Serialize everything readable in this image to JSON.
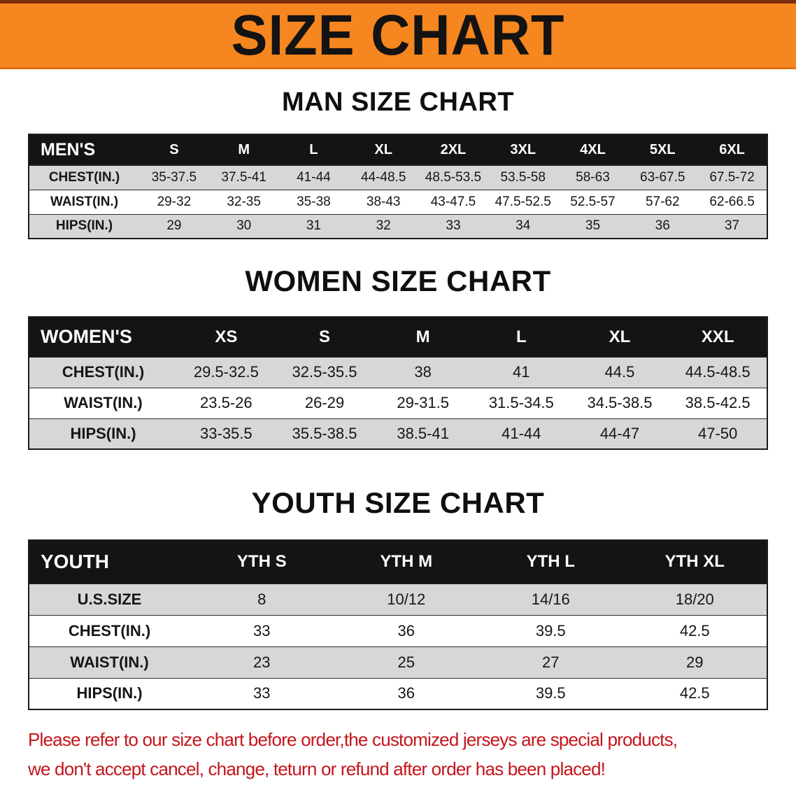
{
  "banner": {
    "title": "SIZE CHART"
  },
  "sections": [
    {
      "heading": "MAN SIZE CHART",
      "table": {
        "header": [
          "MEN'S",
          "S",
          "M",
          "L",
          "XL",
          "2XL",
          "3XL",
          "4XL",
          "5XL",
          "6XL"
        ],
        "rows": [
          [
            "CHEST(IN.)",
            "35-37.5",
            "37.5-41",
            "41-44",
            "44-48.5",
            "48.5-53.5",
            "53.5-58",
            "58-63",
            "63-67.5",
            "67.5-72"
          ],
          [
            "WAIST(IN.)",
            "29-32",
            "32-35",
            "35-38",
            "38-43",
            "43-47.5",
            "47.5-52.5",
            "52.5-57",
            "57-62",
            "62-66.5"
          ],
          [
            "HIPS(IN.)",
            "29",
            "30",
            "31",
            "32",
            "33",
            "34",
            "35",
            "36",
            "37"
          ]
        ]
      }
    },
    {
      "heading": "WOMEN SIZE CHART",
      "table": {
        "header": [
          "WOMEN'S",
          "XS",
          "S",
          "M",
          "L",
          "XL",
          "XXL"
        ],
        "rows": [
          [
            "CHEST(IN.)",
            "29.5-32.5",
            "32.5-35.5",
            "38",
            "41",
            "44.5",
            "44.5-48.5"
          ],
          [
            "WAIST(IN.)",
            "23.5-26",
            "26-29",
            "29-31.5",
            "31.5-34.5",
            "34.5-38.5",
            "38.5-42.5"
          ],
          [
            "HIPS(IN.)",
            "33-35.5",
            "35.5-38.5",
            "38.5-41",
            "41-44",
            "44-47",
            "47-50"
          ]
        ]
      }
    },
    {
      "heading": "YOUTH SIZE CHART",
      "table": {
        "header": [
          "YOUTH",
          "YTH S",
          "YTH M",
          "YTH L",
          "YTH XL"
        ],
        "rows": [
          [
            "U.S.SIZE",
            "8",
            "10/12",
            "14/16",
            "18/20"
          ],
          [
            "CHEST(IN.)",
            "33",
            "36",
            "39.5",
            "42.5"
          ],
          [
            "WAIST(IN.)",
            "23",
            "25",
            "27",
            "29"
          ],
          [
            "HIPS(IN.)",
            "33",
            "36",
            "39.5",
            "42.5"
          ]
        ]
      }
    }
  ],
  "footer": {
    "line1": "Please refer to our size chart before order,the customized jerseys are special products,",
    "line2": "we don't accept cancel, change, teturn or refund after order has been placed!"
  },
  "colors": {
    "banner_orange": "#f6861f",
    "header_black": "#141414",
    "row_gray": "#d7d7d7",
    "footer_red": "#c4161c"
  }
}
